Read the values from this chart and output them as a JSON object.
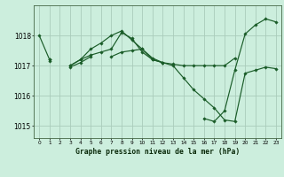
{
  "bg_color": "#cceedd",
  "grid_color": "#aaccbb",
  "line_color": "#1a5c28",
  "marker_color": "#1a5c28",
  "xlabel": "Graphe pression niveau de la mer (hPa)",
  "ylim": [
    1014.6,
    1019.0
  ],
  "yticks": [
    1015,
    1016,
    1017,
    1018
  ],
  "xticks": [
    0,
    1,
    2,
    3,
    4,
    5,
    6,
    7,
    8,
    9,
    10,
    11,
    12,
    13,
    14,
    15,
    16,
    17,
    18,
    19,
    20,
    21,
    22,
    23
  ],
  "series": [
    [
      1018.0,
      1017.2,
      null,
      1017.0,
      1017.2,
      1017.35,
      1017.45,
      1017.55,
      1018.1,
      1017.9,
      1017.45,
      1017.2,
      1017.1,
      1017.05,
      1017.0,
      1017.0,
      1017.0,
      1017.0,
      1017.0,
      1017.25,
      null,
      null,
      null,
      null
    ],
    [
      null,
      1017.2,
      null,
      1017.0,
      1017.2,
      1017.55,
      1017.75,
      1018.0,
      1018.15,
      1017.85,
      1017.55,
      1017.25,
      1017.1,
      null,
      null,
      null,
      null,
      null,
      null,
      null,
      null,
      null,
      null,
      null
    ],
    [
      null,
      1017.15,
      null,
      1016.95,
      1017.1,
      1017.3,
      null,
      1017.3,
      1017.45,
      1017.5,
      1017.55,
      1017.2,
      1017.1,
      1017.0,
      1016.6,
      1016.2,
      1015.9,
      1015.6,
      1015.2,
      1015.15,
      1016.75,
      1016.85,
      1016.95,
      1016.9
    ],
    [
      null,
      null,
      null,
      null,
      null,
      null,
      null,
      null,
      null,
      null,
      null,
      null,
      null,
      null,
      null,
      null,
      1015.25,
      1015.15,
      1015.5,
      1016.85,
      1018.05,
      1018.35,
      1018.55,
      1018.45
    ]
  ]
}
